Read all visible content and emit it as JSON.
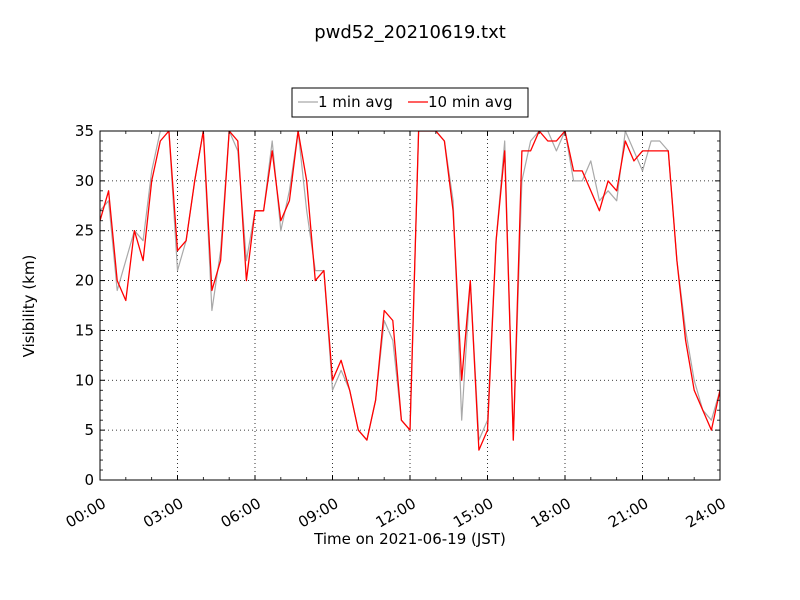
{
  "chart_data": {
    "type": "line",
    "title": "pwd52_20210619.txt",
    "xlabel": "Time on 2021-06-19 (JST)",
    "ylabel": "Visibility (km)",
    "x_ticks": [
      "00:00",
      "03:00",
      "06:00",
      "09:00",
      "12:00",
      "15:00",
      "18:00",
      "21:00",
      "24:00"
    ],
    "y_ticks": [
      "0",
      "5",
      "10",
      "15",
      "20",
      "25",
      "30",
      "35"
    ],
    "xlim": [
      "00:00",
      "24:00"
    ],
    "ylim": [
      0,
      35
    ],
    "grid": true,
    "legend": "top-center",
    "series": [
      {
        "name": "1 min avg",
        "color": "#a9a9a9",
        "x": [
          "00:00",
          "00:20",
          "00:40",
          "01:00",
          "01:20",
          "01:40",
          "02:00",
          "02:20",
          "02:40",
          "03:00",
          "03:20",
          "03:40",
          "04:00",
          "04:20",
          "04:40",
          "05:00",
          "05:20",
          "05:40",
          "06:00",
          "06:20",
          "06:40",
          "07:00",
          "07:20",
          "07:40",
          "08:00",
          "08:20",
          "08:40",
          "09:00",
          "09:20",
          "09:40",
          "10:00",
          "10:20",
          "10:40",
          "11:00",
          "11:20",
          "11:40",
          "12:00",
          "12:20",
          "12:40",
          "13:00",
          "13:20",
          "13:40",
          "14:00",
          "14:20",
          "14:40",
          "15:00",
          "15:20",
          "15:40",
          "16:00",
          "16:20",
          "16:40",
          "17:00",
          "17:20",
          "17:40",
          "18:00",
          "18:20",
          "18:40",
          "19:00",
          "19:20",
          "19:40",
          "20:00",
          "20:20",
          "20:40",
          "21:00",
          "21:20",
          "21:40",
          "22:00",
          "22:20",
          "22:40",
          "23:00",
          "23:20",
          "23:40",
          "24:00"
        ],
        "values": [
          27,
          28,
          19,
          22,
          25,
          24,
          31,
          35,
          35,
          21,
          24,
          30,
          35,
          17,
          23,
          35,
          33,
          22,
          27,
          27,
          34,
          25,
          29,
          35,
          27,
          21,
          21,
          9,
          11,
          9,
          5,
          4,
          8,
          16,
          14,
          6,
          5,
          35,
          35,
          35,
          34,
          28,
          6,
          20,
          4,
          6,
          24,
          34,
          4,
          30,
          34,
          35,
          35,
          33,
          35,
          30,
          30,
          32,
          28,
          29,
          28,
          35,
          33,
          31,
          34,
          34,
          33,
          22,
          15,
          10,
          7,
          6,
          9
        ]
      },
      {
        "name": "10 min avg",
        "color": "#ff0000",
        "x": [
          "00:00",
          "00:20",
          "00:40",
          "01:00",
          "01:20",
          "01:40",
          "02:00",
          "02:20",
          "02:40",
          "03:00",
          "03:20",
          "03:40",
          "04:00",
          "04:20",
          "04:40",
          "05:00",
          "05:20",
          "05:40",
          "06:00",
          "06:20",
          "06:40",
          "07:00",
          "07:20",
          "07:40",
          "08:00",
          "08:20",
          "08:40",
          "09:00",
          "09:20",
          "09:40",
          "10:00",
          "10:20",
          "10:40",
          "11:00",
          "11:20",
          "11:40",
          "12:00",
          "12:20",
          "12:40",
          "13:00",
          "13:20",
          "13:40",
          "14:00",
          "14:20",
          "14:40",
          "15:00",
          "15:20",
          "15:40",
          "16:00",
          "16:20",
          "16:40",
          "17:00",
          "17:20",
          "17:40",
          "18:00",
          "18:20",
          "18:40",
          "19:00",
          "19:20",
          "19:40",
          "20:00",
          "20:20",
          "20:40",
          "21:00",
          "21:20",
          "21:40",
          "22:00",
          "22:20",
          "22:40",
          "23:00",
          "23:20",
          "23:40",
          "24:00"
        ],
        "values": [
          26,
          29,
          20,
          18,
          25,
          22,
          30,
          34,
          35,
          23,
          24,
          30,
          35,
          19,
          22,
          35,
          34,
          20,
          27,
          27,
          33,
          26,
          28,
          35,
          30,
          20,
          21,
          10,
          12,
          9,
          5,
          4,
          8,
          17,
          16,
          6,
          5,
          35,
          35,
          35,
          34,
          27,
          10,
          20,
          3,
          5,
          24,
          33,
          4,
          33,
          33,
          35,
          34,
          34,
          35,
          31,
          31,
          29,
          27,
          30,
          29,
          34,
          32,
          33,
          33,
          33,
          33,
          22,
          14,
          9,
          7,
          5,
          9
        ]
      }
    ]
  }
}
